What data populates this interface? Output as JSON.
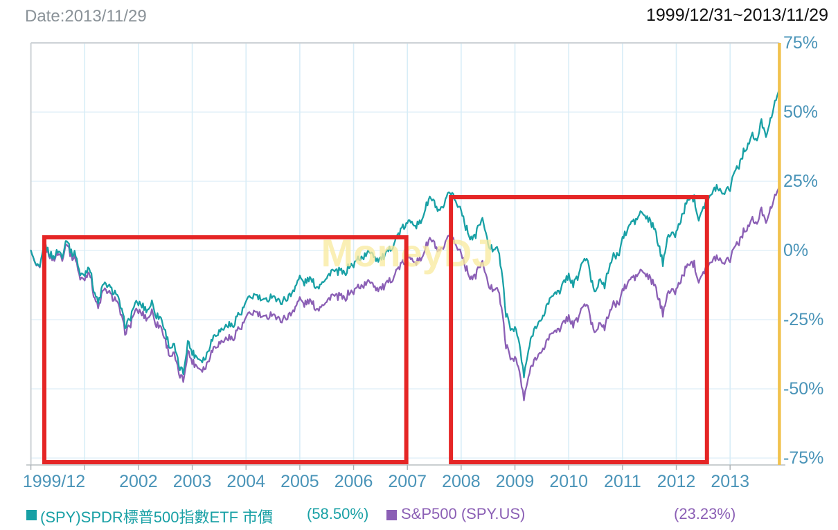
{
  "header": {
    "date_label": "Date:2013/11/29",
    "range_label": "1999/12/31~2013/11/29"
  },
  "watermark": "MoneyDJ",
  "legend": [
    {
      "label": "(SPY)SPDR標普500指數ETF 市價",
      "value": "(58.50%)",
      "color": "#18a0a5"
    },
    {
      "label": "S&P500 (SPY.US)",
      "value": "(23.23%)",
      "color": "#8b5fb5"
    }
  ],
  "chart_data": {
    "type": "line",
    "title": "SPY vs S&P500 cumulative return 1999/12/31~2013/11/29",
    "x_start": "1999/12/31",
    "x_end": "2013/11/29",
    "interval": "monthly",
    "ylim": [
      -77.5,
      75
    ],
    "grid": true,
    "colors": {
      "grid_v": "#d8edf7",
      "grid_h": "#e4f1f8",
      "axis_line": "#b8bdc1",
      "border": "#cdd2d6",
      "tick_text": "#4a94b8",
      "annotation": "#e52525",
      "end_line": "#f1c24d",
      "watermark": "rgba(248,234,160,0.78)"
    },
    "x_ticks": [
      {
        "label": "1999/12",
        "year": 2000.0
      },
      {
        "label": "2002",
        "year": 2002
      },
      {
        "label": "2003",
        "year": 2003
      },
      {
        "label": "2004",
        "year": 2004
      },
      {
        "label": "2005",
        "year": 2005
      },
      {
        "label": "2006",
        "year": 2006
      },
      {
        "label": "2007",
        "year": 2007
      },
      {
        "label": "2008",
        "year": 2008
      },
      {
        "label": "2009",
        "year": 2009
      },
      {
        "label": "2010",
        "year": 2010
      },
      {
        "label": "2011",
        "year": 2011
      },
      {
        "label": "2012",
        "year": 2012
      },
      {
        "label": "2013",
        "year": 2013
      }
    ],
    "y_ticks": [
      {
        "label": "75%",
        "value": 75
      },
      {
        "label": "50%",
        "value": 50
      },
      {
        "label": "25%",
        "value": 25
      },
      {
        "label": "0%",
        "value": 0
      },
      {
        "label": "-25%",
        "value": -25
      },
      {
        "label": "-50%",
        "value": -50
      },
      {
        "label": "-75%",
        "value": -75
      }
    ],
    "series": [
      {
        "name": "S&P500 (SPY.US)",
        "color": "#8b5fb5",
        "final_label": "(23.23%)",
        "values": [
          0,
          -5.1,
          -7.0,
          2.0,
          -1.2,
          -3.3,
          -1.0,
          -2.6,
          3.3,
          -2.2,
          -2.7,
          -10.5,
          -10.1,
          -7.0,
          -15.6,
          -21.0,
          -15.0,
          -14.5,
          -16.7,
          -17.6,
          -22.8,
          -29.2,
          -27.9,
          -22.5,
          -21.9,
          -23.1,
          -24.7,
          -21.9,
          -26.7,
          -27.4,
          -32.6,
          -37.9,
          -37.7,
          -44.5,
          -47.0,
          -36.3,
          -40.1,
          -41.7,
          -42.8,
          -42.3,
          -37.6,
          -34.4,
          -33.6,
          -32.6,
          -31.4,
          -32.2,
          -28.5,
          -28.0,
          -24.3,
          -23.0,
          -22.1,
          -23.4,
          -24.7,
          -23.7,
          -22.3,
          -25.0,
          -24.9,
          -24.1,
          -23.1,
          -20.1,
          -17.5,
          -19.6,
          -18.1,
          -19.6,
          -21.3,
          -18.9,
          -18.9,
          -16.0,
          -17.0,
          -16.4,
          -17.8,
          -15.0,
          -15.1,
          -12.9,
          -12.8,
          -11.9,
          -10.8,
          -13.6,
          -13.6,
          -13.1,
          -11.2,
          -9.1,
          -6.2,
          -4.6,
          -3.5,
          -2.1,
          -4.2,
          -3.3,
          0.9,
          4.2,
          2.3,
          -1.0,
          0.3,
          3.9,
          5.4,
          0.8,
          -0.1,
          -6.1,
          -9.4,
          -10.0,
          -5.7,
          -4.7,
          -12.9,
          -13.8,
          -12.7,
          -20.6,
          -34.1,
          -39.0,
          -38.5,
          -43.8,
          -54.0,
          -45.7,
          -40.6,
          -37.5,
          -37.5,
          -32.8,
          -30.5,
          -28.1,
          -29.5,
          -25.4,
          -24.1,
          -26.9,
          -24.9,
          -20.4,
          -19.2,
          -25.9,
          -29.8,
          -25.0,
          -28.6,
          -22.3,
          -19.5,
          -19.6,
          -14.4,
          -12.5,
          -9.7,
          -9.8,
          -7.2,
          -8.5,
          -10.1,
          -12.1,
          -17.0,
          -23.0,
          -14.7,
          -15.1,
          -14.4,
          -10.7,
          -7.0,
          -4.2,
          -4.9,
          -10.8,
          -7.3,
          -6.1,
          -4.3,
          -1.9,
          -3.9,
          -3.6,
          -2.9,
          2.0,
          3.1,
          6.8,
          8.8,
          11.0,
          9.3,
          14.8,
          11.1,
          14.5,
          19.6,
          23.23
        ]
      },
      {
        "name": "(SPY)SPDR標普500指數ETF 市價",
        "color": "#18a0a5",
        "final_label": "(58.50%)",
        "values": [
          0,
          -5.0,
          -6.7,
          2.5,
          -0.6,
          -2.6,
          -0.1,
          -1.6,
          4.6,
          -0.9,
          -1.2,
          -9.0,
          -8.5,
          -5.2,
          -13.8,
          -19.2,
          -12.9,
          -12.3,
          -14.4,
          -15.2,
          -20.4,
          -26.9,
          -25.5,
          -19.8,
          -19.0,
          -20.2,
          -21.7,
          -18.7,
          -23.5,
          -24.2,
          -29.5,
          -34.9,
          -34.6,
          -41.7,
          -44.2,
          -32.8,
          -36.8,
          -38.4,
          -39.4,
          -38.8,
          -33.7,
          -30.2,
          -29.3,
          -28.1,
          -26.7,
          -27.5,
          -23.4,
          -22.7,
          -18.6,
          -17.1,
          -16.0,
          -17.3,
          -18.6,
          -17.4,
          -15.7,
          -18.5,
          -18.3,
          -17.3,
          -16.1,
          -12.7,
          -9.7,
          -11.9,
          -10.1,
          -11.6,
          -13.4,
          -10.6,
          -10.4,
          -7.1,
          -8.1,
          -7.3,
          -8.7,
          -5.4,
          -5.4,
          -2.8,
          -2.5,
          -1.4,
          0.0,
          -3.0,
          -2.9,
          -2.1,
          0.1,
          2.7,
          6.1,
          8.1,
          9.5,
          11.2,
          9.0,
          10.2,
          15.2,
          19.1,
          17.1,
          13.5,
          15.2,
          19.5,
          21.4,
          16.3,
          15.4,
          8.6,
          5.0,
          4.4,
          9.6,
          10.9,
          1.5,
          0.6,
          2.1,
          -7.0,
          -22.7,
          -28.4,
          -27.7,
          -33.8,
          -45.7,
          -36.2,
          -29.7,
          -25.9,
          -25.8,
          -20.1,
          -17.3,
          -14.3,
          -15.8,
          -10.8,
          -9.1,
          -12.3,
          -9.8,
          -4.2,
          -2.6,
          -10.6,
          -15.2,
          -9.2,
          -13.5,
          -5.7,
          -2.1,
          -2.1,
          4.4,
          6.9,
          10.5,
          10.5,
          13.9,
          12.4,
          10.6,
          8.3,
          2.4,
          -4.8,
          5.6,
          5.3,
          6.3,
          11.1,
          15.8,
          19.5,
          18.8,
          11.6,
          16.2,
          17.8,
          20.3,
          23.5,
          21.1,
          21.7,
          22.8,
          29.2,
          30.7,
          35.6,
          38.4,
          41.4,
          39.4,
          46.7,
          42.2,
          46.7,
          53.5,
          58.5
        ]
      }
    ],
    "annotations": {
      "boxes": [
        {
          "x0_year": 2000.25,
          "x1_year": 2006.98,
          "y0_pct": 4.75,
          "y1_pct": -76.5
        },
        {
          "x0_year": 2007.81,
          "x1_year": 2012.57,
          "y0_pct": 19.25,
          "y1_pct": -76.5
        }
      ],
      "end_line_year": 2013.917
    }
  }
}
